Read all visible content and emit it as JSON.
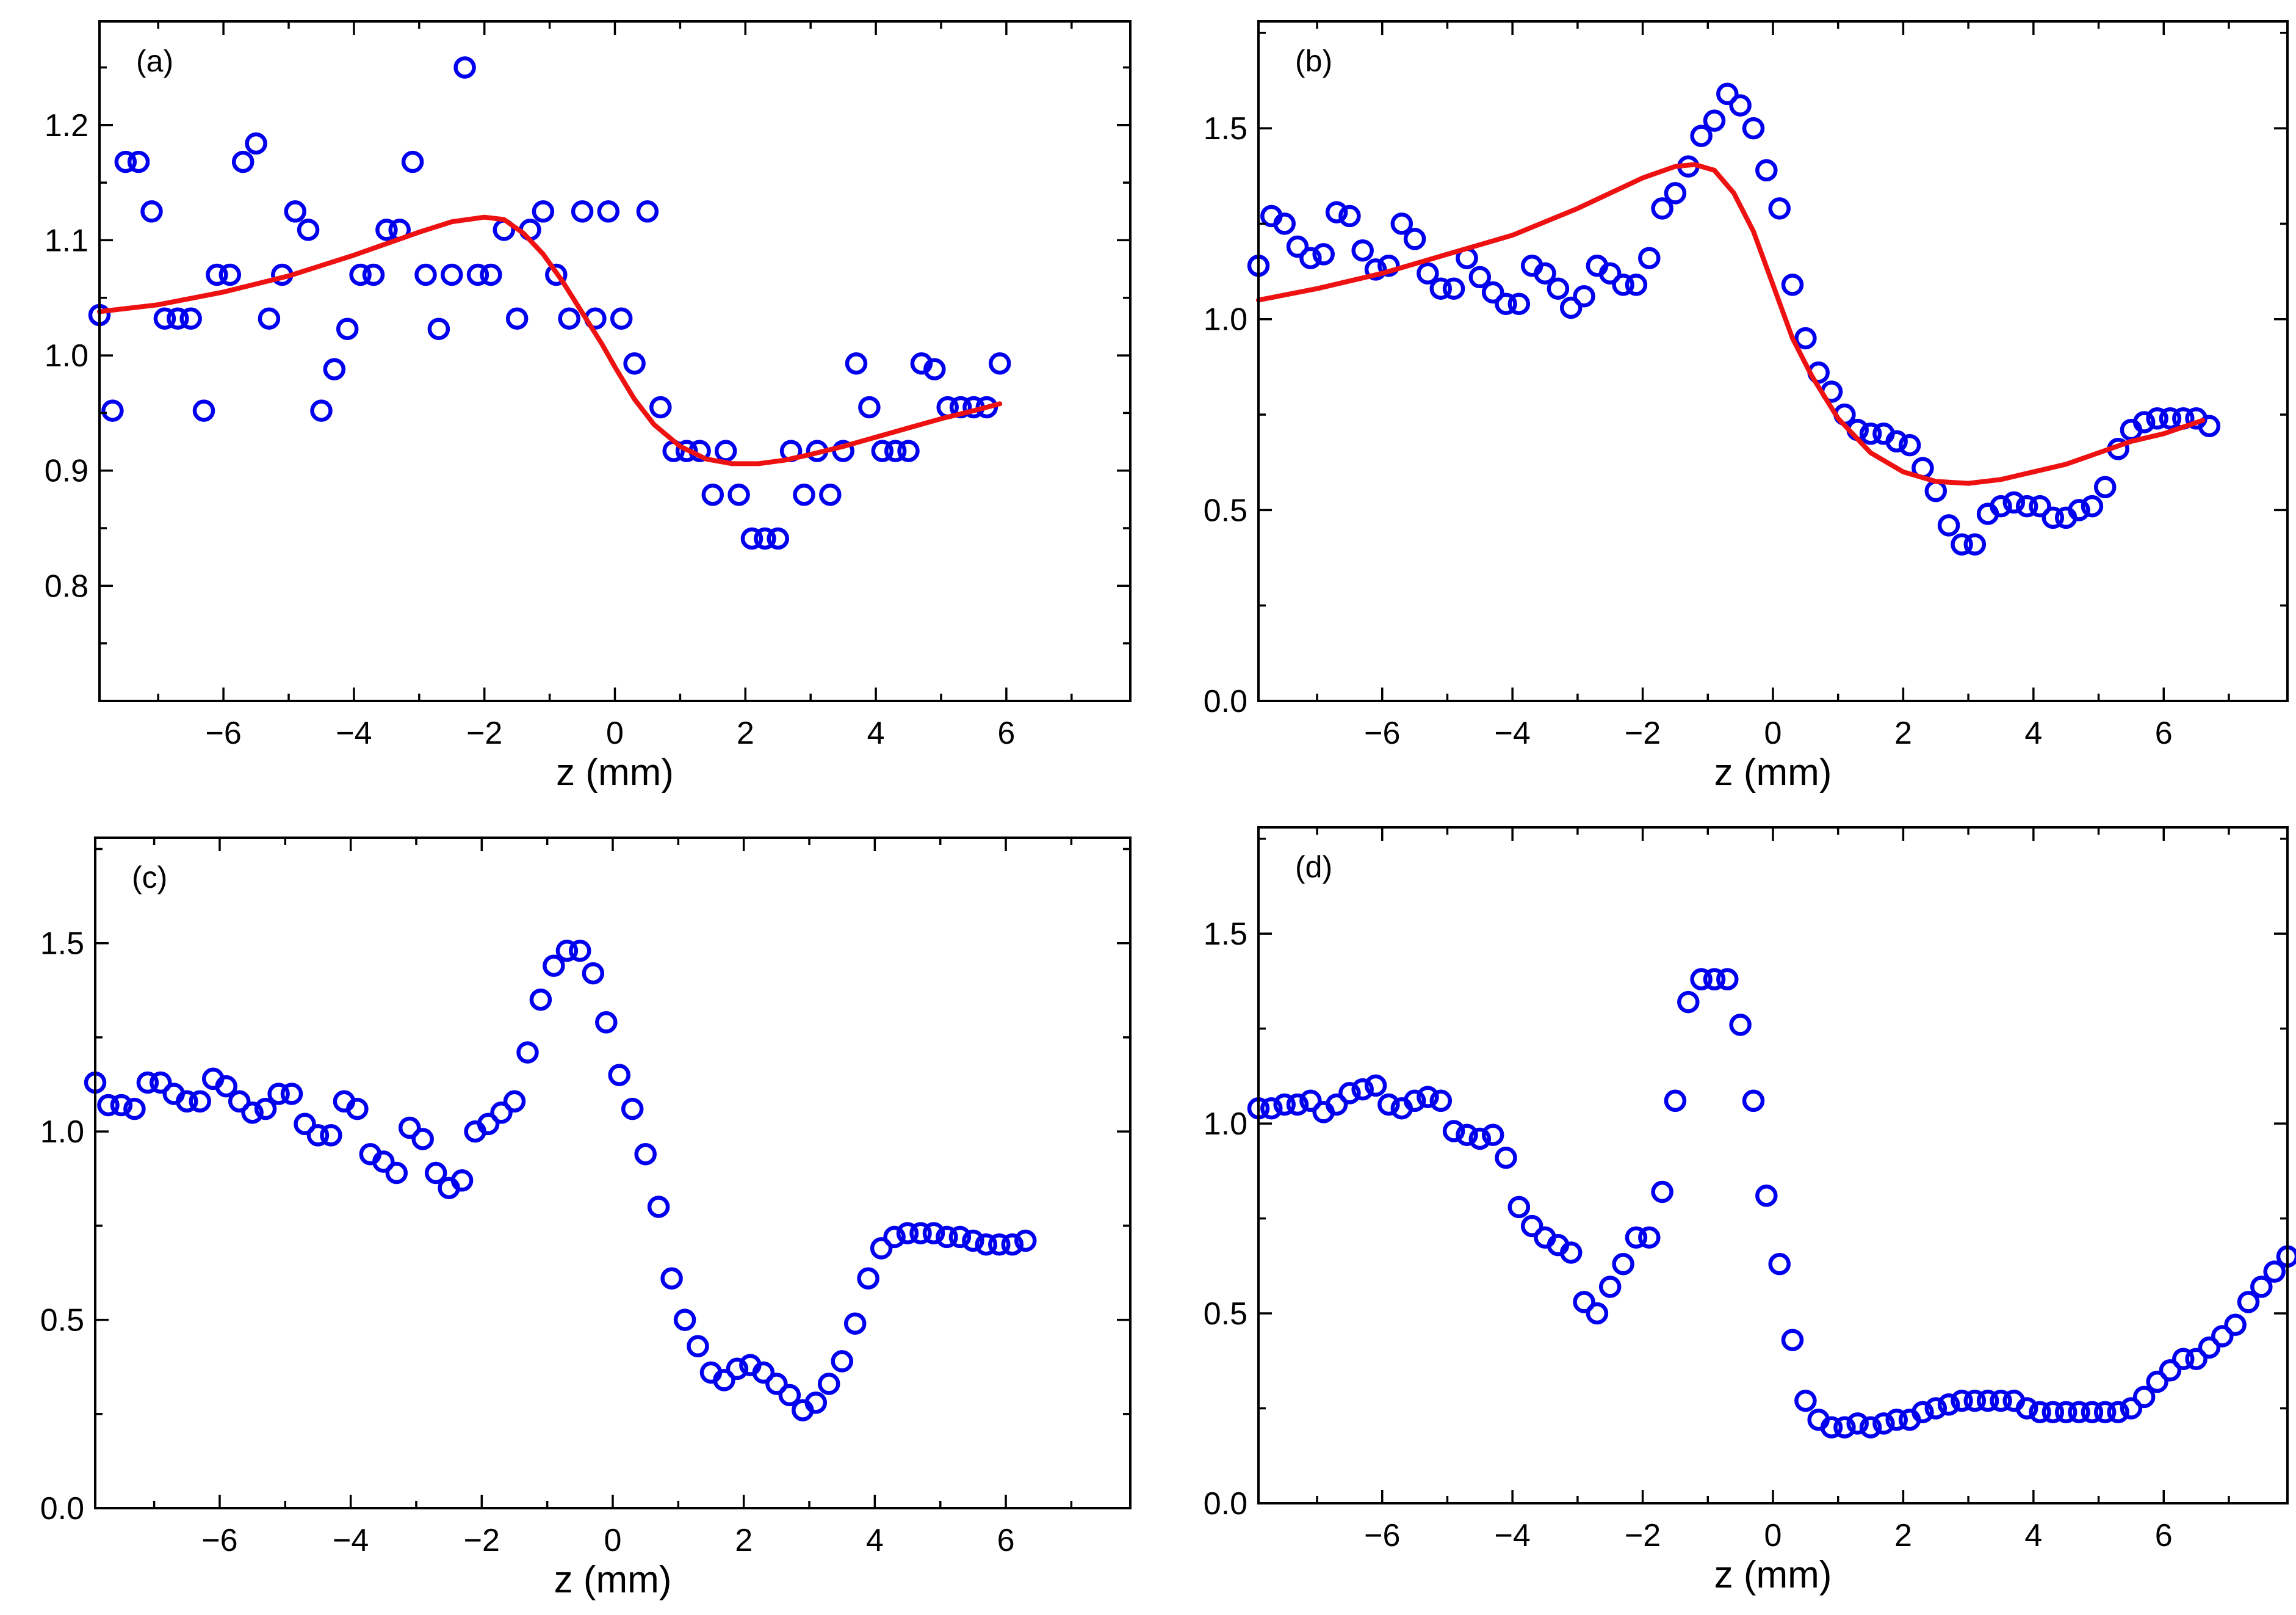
{
  "chart_data": [
    {
      "type": "scatter",
      "panel_label": "(a)",
      "xlabel": "z (mm)",
      "ylabel": "",
      "xlim": [
        -7.9,
        7.9
      ],
      "ylim": [
        0.7,
        1.29
      ],
      "xticks": [
        -6,
        -4,
        -2,
        0,
        2,
        4,
        6
      ],
      "xtick_labels": [
        "−6",
        "−4",
        "−2",
        "0",
        "2",
        "4",
        "6"
      ],
      "yticks": [
        0.8,
        0.9,
        1.0,
        1.1,
        1.2
      ],
      "ytick_labels": [
        "0.8",
        "0.9",
        "1.0",
        "1.1",
        "1.2"
      ],
      "series": [
        {
          "name": "data",
          "kind": "points",
          "color": "#0000ee",
          "x": [
            -7.9,
            -7.7,
            -7.5,
            -7.3,
            -7.1,
            -6.9,
            -6.7,
            -6.5,
            -6.3,
            -6.1,
            -5.9,
            -5.7,
            -5.5,
            -5.3,
            -5.1,
            -4.9,
            -4.7,
            -4.5,
            -4.3,
            -4.1,
            -3.9,
            -3.7,
            -3.5,
            -3.3,
            -3.1,
            -2.9,
            -2.7,
            -2.5,
            -2.3,
            -2.1,
            -1.9,
            -1.7,
            -1.5,
            -1.3,
            -1.1,
            -0.9,
            -0.7,
            -0.5,
            -0.3,
            -0.1,
            0.1,
            0.3,
            0.5,
            0.7,
            0.9,
            1.1,
            1.3,
            1.5,
            1.7,
            1.9,
            2.1,
            2.3,
            2.5,
            2.7,
            2.9,
            3.1,
            3.3,
            3.5,
            3.7,
            3.9,
            4.1,
            4.3,
            4.5,
            4.7,
            4.9,
            5.1,
            5.3,
            5.5,
            5.7,
            5.9
          ],
          "y": [
            1.035,
            0.952,
            1.168,
            1.168,
            1.125,
            1.032,
            1.032,
            1.032,
            0.952,
            1.07,
            1.07,
            1.168,
            1.184,
            1.032,
            1.07,
            1.125,
            1.109,
            0.952,
            0.988,
            1.023,
            1.07,
            1.07,
            1.109,
            1.109,
            1.168,
            1.07,
            1.023,
            1.07,
            1.25,
            1.07,
            1.07,
            1.109,
            1.032,
            1.109,
            1.125,
            1.07,
            1.032,
            1.125,
            1.032,
            1.125,
            1.032,
            0.993,
            1.125,
            0.955,
            0.917,
            0.917,
            0.917,
            0.879,
            0.917,
            0.879,
            0.841,
            0.841,
            0.841,
            0.917,
            0.879,
            0.917,
            0.879,
            0.917,
            0.993,
            0.955,
            0.917,
            0.917,
            0.917,
            0.993,
            0.988,
            0.955,
            0.955,
            0.955,
            0.955,
            0.993
          ]
        },
        {
          "name": "fit",
          "kind": "line",
          "color": "#ee1111",
          "x": [
            -7.9,
            -7,
            -6,
            -5,
            -4,
            -3,
            -2.5,
            -2,
            -1.7,
            -1.4,
            -1.1,
            -0.8,
            -0.5,
            -0.2,
            0,
            0.3,
            0.6,
            1,
            1.4,
            1.8,
            2.2,
            2.6,
            3,
            3.5,
            4,
            4.5,
            5,
            5.5,
            5.9
          ],
          "y": [
            1.038,
            1.044,
            1.055,
            1.069,
            1.087,
            1.107,
            1.116,
            1.12,
            1.118,
            1.106,
            1.088,
            1.064,
            1.037,
            1.01,
            0.99,
            0.962,
            0.94,
            0.921,
            0.91,
            0.906,
            0.906,
            0.909,
            0.914,
            0.921,
            0.929,
            0.937,
            0.945,
            0.952,
            0.958
          ]
        }
      ]
    },
    {
      "type": "scatter",
      "panel_label": "(b)",
      "xlabel": "z (mm)",
      "ylabel": "",
      "xlim": [
        -7.9,
        7.9
      ],
      "ylim": [
        0,
        1.78
      ],
      "xticks": [
        -6,
        -4,
        -2,
        0,
        2,
        4,
        6
      ],
      "xtick_labels": [
        "−6",
        "−4",
        "−2",
        "0",
        "2",
        "4",
        "6"
      ],
      "yticks": [
        0,
        0.5,
        1.0,
        1.5
      ],
      "ytick_labels": [
        "0.0",
        "0.5",
        "1.0",
        "1.5"
      ],
      "series": [
        {
          "name": "data",
          "kind": "points",
          "color": "#0000ee",
          "x": [
            -7.9,
            -7.7,
            -7.5,
            -7.3,
            -7.1,
            -6.9,
            -6.7,
            -6.5,
            -6.3,
            -6.1,
            -5.9,
            -5.7,
            -5.5,
            -5.3,
            -5.1,
            -4.9,
            -4.7,
            -4.5,
            -4.3,
            -4.1,
            -3.9,
            -3.7,
            -3.5,
            -3.3,
            -3.1,
            -2.9,
            -2.7,
            -2.5,
            -2.3,
            -2.1,
            -1.9,
            -1.7,
            -1.5,
            -1.3,
            -1.1,
            -0.9,
            -0.7,
            -0.5,
            -0.3,
            -0.1,
            0.1,
            0.3,
            0.5,
            0.7,
            0.9,
            1.1,
            1.3,
            1.5,
            1.7,
            1.9,
            2.1,
            2.3,
            2.5,
            2.7,
            2.9,
            3.1,
            3.3,
            3.5,
            3.7,
            3.9,
            4.1,
            4.3,
            4.5,
            4.7,
            4.9,
            5.1,
            5.3,
            5.5,
            5.7,
            5.9,
            6.1,
            6.3,
            6.5,
            6.7
          ],
          "y": [
            1.14,
            1.27,
            1.25,
            1.19,
            1.16,
            1.17,
            1.28,
            1.27,
            1.18,
            1.13,
            1.14,
            1.25,
            1.21,
            1.12,
            1.08,
            1.08,
            1.16,
            1.11,
            1.07,
            1.04,
            1.04,
            1.14,
            1.12,
            1.08,
            1.03,
            1.06,
            1.14,
            1.12,
            1.09,
            1.09,
            1.16,
            1.29,
            1.33,
            1.4,
            1.48,
            1.52,
            1.59,
            1.56,
            1.5,
            1.39,
            1.29,
            1.09,
            0.95,
            0.86,
            0.81,
            0.75,
            0.71,
            0.7,
            0.7,
            0.68,
            0.67,
            0.61,
            0.55,
            0.46,
            0.41,
            0.41,
            0.49,
            0.51,
            0.52,
            0.51,
            0.51,
            0.48,
            0.48,
            0.5,
            0.51,
            0.56,
            0.66,
            0.71,
            0.73,
            0.74,
            0.74,
            0.74,
            0.74,
            0.72
          ]
        },
        {
          "name": "fit",
          "kind": "line",
          "color": "#ee1111",
          "x": [
            -7.9,
            -7,
            -6,
            -5,
            -4,
            -3,
            -2.5,
            -2,
            -1.5,
            -1.2,
            -0.9,
            -0.6,
            -0.3,
            0,
            0.3,
            0.6,
            1,
            1.5,
            2,
            2.5,
            3,
            3.5,
            4,
            4.5,
            5,
            5.5,
            6,
            6.6
          ],
          "y": [
            1.05,
            1.08,
            1.12,
            1.17,
            1.22,
            1.29,
            1.33,
            1.37,
            1.4,
            1.405,
            1.39,
            1.33,
            1.23,
            1.09,
            0.95,
            0.85,
            0.74,
            0.65,
            0.6,
            0.575,
            0.57,
            0.58,
            0.6,
            0.62,
            0.65,
            0.68,
            0.7,
            0.735
          ]
        }
      ]
    },
    {
      "type": "scatter",
      "panel_label": "(c)",
      "xlabel": "z (mm)",
      "ylabel": "",
      "xlim": [
        -7.9,
        7.9
      ],
      "ylim": [
        0,
        1.78
      ],
      "xticks": [
        -6,
        -4,
        -2,
        0,
        2,
        4,
        6
      ],
      "xtick_labels": [
        "−6",
        "−4",
        "−2",
        "0",
        "2",
        "4",
        "6"
      ],
      "yticks": [
        0,
        0.5,
        1.0,
        1.5
      ],
      "ytick_labels": [
        "0.0",
        "0.5",
        "1.0",
        "1.5"
      ],
      "series": [
        {
          "name": "data",
          "kind": "points",
          "color": "#0000ee",
          "x": [
            -7.9,
            -7.7,
            -7.5,
            -7.3,
            -7.1,
            -6.9,
            -6.7,
            -6.5,
            -6.3,
            -6.1,
            -5.9,
            -5.7,
            -5.5,
            -5.3,
            -5.1,
            -4.9,
            -4.7,
            -4.5,
            -4.3,
            -4.1,
            -3.9,
            -3.7,
            -3.5,
            -3.3,
            -3.1,
            -2.9,
            -2.7,
            -2.5,
            -2.3,
            -2.1,
            -1.9,
            -1.7,
            -1.5,
            -1.3,
            -1.1,
            -0.9,
            -0.7,
            -0.5,
            -0.3,
            -0.1,
            0.1,
            0.3,
            0.5,
            0.7,
            0.9,
            1.1,
            1.3,
            1.5,
            1.7,
            1.9,
            2.1,
            2.3,
            2.5,
            2.7,
            2.9,
            3.1,
            3.3,
            3.5,
            3.7,
            3.9,
            4.1,
            4.3,
            4.5,
            4.7,
            4.9,
            5.1,
            5.3,
            5.5,
            5.7,
            5.9,
            6.1,
            6.3
          ],
          "y": [
            1.13,
            1.07,
            1.07,
            1.06,
            1.13,
            1.13,
            1.1,
            1.08,
            1.08,
            1.14,
            1.12,
            1.08,
            1.05,
            1.06,
            1.1,
            1.1,
            1.02,
            0.99,
            0.99,
            1.08,
            1.06,
            0.94,
            0.92,
            0.89,
            1.01,
            0.98,
            0.89,
            0.85,
            0.87,
            1.0,
            1.02,
            1.05,
            1.08,
            1.21,
            1.35,
            1.44,
            1.48,
            1.48,
            1.42,
            1.29,
            1.15,
            1.06,
            0.94,
            0.8,
            0.61,
            0.5,
            0.43,
            0.36,
            0.34,
            0.37,
            0.38,
            0.36,
            0.33,
            0.3,
            0.26,
            0.28,
            0.33,
            0.39,
            0.49,
            0.61,
            0.69,
            0.72,
            0.73,
            0.73,
            0.73,
            0.72,
            0.72,
            0.71,
            0.7,
            0.7,
            0.7,
            0.71
          ]
        }
      ]
    },
    {
      "type": "scatter",
      "panel_label": "(d)",
      "xlabel": "z (mm)",
      "ylabel": "",
      "xlim": [
        -7.9,
        7.9
      ],
      "ylim": [
        0,
        1.78
      ],
      "xticks": [
        -6,
        -4,
        -2,
        0,
        2,
        4,
        6
      ],
      "xtick_labels": [
        "−6",
        "−4",
        "−2",
        "0",
        "2",
        "4",
        "6"
      ],
      "yticks": [
        0,
        0.5,
        1.0,
        1.5
      ],
      "ytick_labels": [
        "0.0",
        "0.5",
        "1.0",
        "1.5"
      ],
      "series": [
        {
          "name": "data",
          "kind": "points",
          "color": "#0000ee",
          "x": [
            -7.9,
            -7.7,
            -7.5,
            -7.3,
            -7.1,
            -6.9,
            -6.7,
            -6.5,
            -6.3,
            -6.1,
            -5.9,
            -5.7,
            -5.5,
            -5.3,
            -5.1,
            -4.9,
            -4.7,
            -4.5,
            -4.3,
            -4.1,
            -3.9,
            -3.7,
            -3.5,
            -3.3,
            -3.1,
            -2.9,
            -2.7,
            -2.5,
            -2.3,
            -2.1,
            -1.9,
            -1.7,
            -1.5,
            -1.3,
            -1.1,
            -0.9,
            -0.7,
            -0.5,
            -0.3,
            -0.1,
            0.1,
            0.3,
            0.5,
            0.7,
            0.9,
            1.1,
            1.3,
            1.5,
            1.7,
            1.9,
            2.1,
            2.3,
            2.5,
            2.7,
            2.9,
            3.1,
            3.3,
            3.5,
            3.7,
            3.9,
            4.1,
            4.3,
            4.5,
            4.7,
            4.9,
            5.1,
            5.3,
            5.5,
            5.7,
            5.9,
            6.1,
            6.3,
            6.5,
            6.7,
            6.9,
            7.1,
            7.3,
            7.5,
            7.7,
            7.9
          ],
          "y": [
            1.04,
            1.04,
            1.05,
            1.05,
            1.06,
            1.03,
            1.05,
            1.08,
            1.09,
            1.1,
            1.05,
            1.04,
            1.06,
            1.07,
            1.06,
            0.98,
            0.97,
            0.96,
            0.97,
            0.91,
            0.78,
            0.73,
            0.7,
            0.68,
            0.66,
            0.53,
            0.5,
            0.57,
            0.63,
            0.7,
            0.7,
            0.82,
            1.06,
            1.32,
            1.38,
            1.38,
            1.38,
            1.26,
            1.06,
            0.81,
            0.63,
            0.43,
            0.27,
            0.22,
            0.2,
            0.2,
            0.21,
            0.2,
            0.21,
            0.22,
            0.22,
            0.24,
            0.25,
            0.26,
            0.27,
            0.27,
            0.27,
            0.27,
            0.27,
            0.25,
            0.24,
            0.24,
            0.24,
            0.24,
            0.24,
            0.24,
            0.24,
            0.25,
            0.28,
            0.32,
            0.35,
            0.38,
            0.38,
            0.41,
            0.44,
            0.47,
            0.53,
            0.57,
            0.61,
            0.65
          ]
        }
      ]
    }
  ]
}
